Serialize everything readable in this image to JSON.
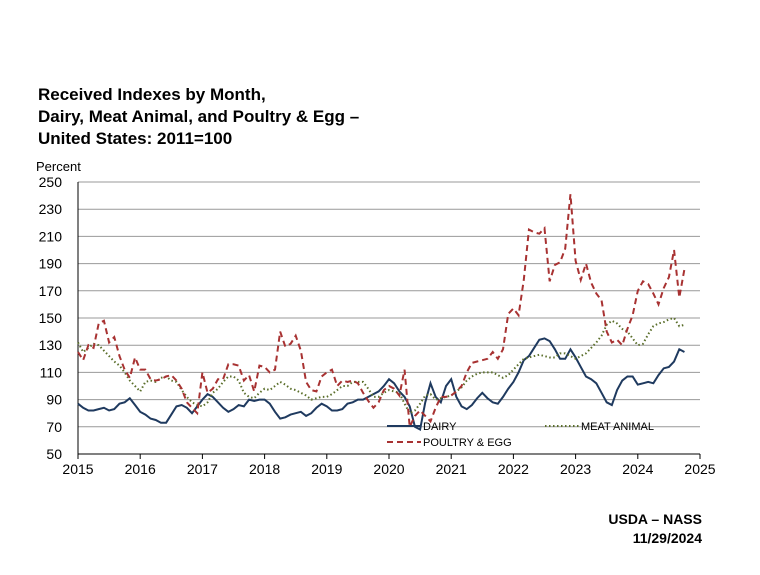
{
  "chart_data": {
    "type": "line",
    "title": [
      "Received Indexes by Month,",
      "Dairy, Meat Animal, and Poultry & Egg –",
      "United States: 2011=100"
    ],
    "y_label": "Percent",
    "source": "USDA – NASS",
    "date": "11/29/2024",
    "xlim": [
      2015,
      2025
    ],
    "xticks": [
      2015,
      2016,
      2017,
      2018,
      2019,
      2020,
      2021,
      2022,
      2023,
      2024,
      2025
    ],
    "ylim": [
      50,
      250
    ],
    "yticks": [
      50,
      70,
      90,
      110,
      130,
      150,
      170,
      190,
      210,
      230,
      250
    ],
    "grid": true,
    "x": [
      2015,
      2015.083,
      2015.167,
      2015.25,
      2015.333,
      2015.417,
      2015.5,
      2015.583,
      2015.667,
      2015.75,
      2015.833,
      2015.917,
      2016,
      2016.083,
      2016.167,
      2016.25,
      2016.333,
      2016.417,
      2016.5,
      2016.583,
      2016.667,
      2016.75,
      2016.833,
      2016.917,
      2017,
      2017.083,
      2017.167,
      2017.25,
      2017.333,
      2017.417,
      2017.5,
      2017.583,
      2017.667,
      2017.75,
      2017.833,
      2017.917,
      2018,
      2018.083,
      2018.167,
      2018.25,
      2018.333,
      2018.417,
      2018.5,
      2018.583,
      2018.667,
      2018.75,
      2018.833,
      2018.917,
      2019,
      2019.083,
      2019.167,
      2019.25,
      2019.333,
      2019.417,
      2019.5,
      2019.583,
      2019.667,
      2019.75,
      2019.833,
      2019.917,
      2020,
      2020.083,
      2020.167,
      2020.25,
      2020.333,
      2020.417,
      2020.5,
      2020.583,
      2020.667,
      2020.75,
      2020.833,
      2020.917,
      2021,
      2021.083,
      2021.167,
      2021.25,
      2021.333,
      2021.417,
      2021.5,
      2021.583,
      2021.667,
      2021.75,
      2021.833,
      2021.917,
      2022,
      2022.083,
      2022.167,
      2022.25,
      2022.333,
      2022.417,
      2022.5,
      2022.583,
      2022.667,
      2022.75,
      2022.833,
      2022.917,
      2023,
      2023.083,
      2023.167,
      2023.25,
      2023.333,
      2023.417,
      2023.5,
      2023.583,
      2023.667,
      2023.75,
      2023.833,
      2023.917,
      2024,
      2024.083,
      2024.167,
      2024.25,
      2024.333,
      2024.417,
      2024.5,
      2024.583,
      2024.667,
      2024.75
    ],
    "series": [
      {
        "name": "DAIRY",
        "color": "#1f3a5f",
        "dash": "solid",
        "values": [
          87,
          84,
          82,
          82,
          83,
          84,
          82,
          83,
          87,
          88,
          91,
          86,
          81,
          79,
          76,
          75,
          73,
          73,
          79,
          85,
          86,
          84,
          80,
          85,
          90,
          94,
          92,
          88,
          84,
          81,
          83,
          86,
          85,
          90,
          89,
          90,
          90,
          87,
          81,
          76,
          77,
          79,
          80,
          81,
          78,
          80,
          84,
          87,
          85,
          82,
          82,
          83,
          87,
          88,
          90,
          90,
          92,
          94,
          96,
          100,
          105,
          102,
          96,
          92,
          85,
          70,
          68,
          88,
          102,
          92,
          88,
          100,
          105,
          92,
          85,
          83,
          86,
          91,
          95,
          91,
          88,
          87,
          92,
          98,
          103,
          110,
          119,
          122,
          128,
          134,
          135,
          133,
          127,
          120,
          120,
          127,
          121,
          114,
          107,
          105,
          102,
          95,
          88,
          86,
          97,
          104,
          107,
          107,
          101,
          102,
          103,
          102,
          108,
          113,
          114,
          118,
          127,
          125
        ]
      },
      {
        "name": "MEAT ANIMAL",
        "color": "#5a6e2a",
        "dash": "dotted",
        "values": [
          132,
          125,
          128,
          131,
          130,
          126,
          122,
          118,
          115,
          110,
          104,
          100,
          96,
          103,
          104,
          103,
          106,
          107,
          104,
          103,
          97,
          92,
          88,
          86,
          85,
          88,
          95,
          98,
          103,
          107,
          107,
          104,
          95,
          92,
          91,
          95,
          98,
          97,
          100,
          103,
          101,
          98,
          97,
          95,
          93,
          90,
          91,
          92,
          92,
          94,
          97,
          100,
          100,
          103,
          103,
          103,
          98,
          92,
          92,
          95,
          97,
          96,
          95,
          87,
          80,
          82,
          87,
          93,
          94,
          90,
          91,
          92,
          93,
          96,
          99,
          104,
          107,
          109,
          110,
          110,
          110,
          108,
          106,
          108,
          112,
          116,
          120,
          121,
          122,
          123,
          122,
          121,
          121,
          124,
          124,
          122,
          120,
          122,
          124,
          128,
          132,
          137,
          145,
          148,
          146,
          142,
          140,
          135,
          130,
          131,
          138,
          144,
          146,
          147,
          149,
          150,
          144,
          145
        ]
      },
      {
        "name": "POULTRY & EGG",
        "color": "#a83232",
        "dash": "dashed",
        "values": [
          125,
          119,
          130,
          128,
          146,
          148,
          132,
          136,
          122,
          112,
          106,
          121,
          112,
          112,
          105,
          104,
          105,
          107,
          108,
          104,
          98,
          88,
          84,
          80,
          110,
          95,
          98,
          105,
          105,
          116,
          116,
          115,
          104,
          108,
          96,
          115,
          114,
          110,
          112,
          140,
          129,
          131,
          137,
          126,
          103,
          97,
          96,
          107,
          110,
          112,
          100,
          104,
          103,
          104,
          102,
          95,
          89,
          84,
          88,
          97,
          100,
          98,
          93,
          112,
          70,
          78,
          82,
          78,
          74,
          84,
          92,
          92,
          93,
          96,
          100,
          110,
          117,
          118,
          119,
          120,
          125,
          120,
          127,
          153,
          157,
          152,
          178,
          215,
          213,
          212,
          216,
          177,
          189,
          191,
          201,
          241,
          192,
          178,
          190,
          176,
          168,
          163,
          140,
          132,
          134,
          130,
          142,
          152,
          170,
          177,
          175,
          168,
          160,
          172,
          180,
          200,
          165,
          186
        ]
      }
    ]
  }
}
